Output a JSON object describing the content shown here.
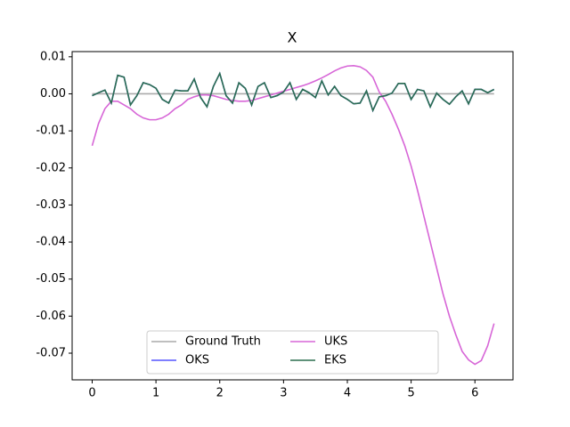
{
  "chart_data": {
    "type": "line",
    "title": "X",
    "x": [
      0,
      0.1,
      0.2,
      0.3,
      0.4,
      0.5,
      0.6,
      0.7,
      0.8,
      0.9,
      1.0,
      1.1,
      1.2,
      1.3,
      1.4,
      1.5,
      1.6,
      1.7,
      1.8,
      1.9,
      2.0,
      2.1,
      2.2,
      2.3,
      2.4,
      2.5,
      2.6,
      2.7,
      2.8,
      2.9,
      3.0,
      3.1,
      3.2,
      3.3,
      3.4,
      3.5,
      3.6,
      3.7,
      3.8,
      3.9,
      4.0,
      4.1,
      4.2,
      4.3,
      4.4,
      4.5,
      4.6,
      4.7,
      4.8,
      4.9,
      5.0,
      5.1,
      5.2,
      5.3,
      5.4,
      5.5,
      5.6,
      5.7,
      5.8,
      5.9,
      6.0,
      6.1,
      6.2,
      6.3
    ],
    "series": [
      {
        "name": "Ground Truth",
        "color": "#aaaaaa",
        "values": [
          0,
          0,
          0,
          0,
          0,
          0,
          0,
          0,
          0,
          0,
          0,
          0,
          0,
          0,
          0,
          0,
          0,
          0,
          0,
          0,
          0,
          0,
          0,
          0,
          0,
          0,
          0,
          0,
          0,
          0,
          0,
          0,
          0,
          0,
          0,
          0,
          0,
          0,
          0,
          0,
          0,
          0,
          0,
          0,
          0,
          0,
          0,
          0,
          0,
          0,
          0,
          0,
          0,
          0,
          0,
          0,
          0,
          0,
          0,
          0,
          0,
          0,
          0,
          0
        ]
      },
      {
        "name": "OKS",
        "color": "#5555ff",
        "values": [
          -0.0005,
          0.0003,
          0.001,
          -0.0025,
          0.005,
          0.0045,
          -0.003,
          -0.0005,
          0.003,
          0.0025,
          0.0015,
          -0.0015,
          -0.0025,
          0.001,
          0.0008,
          0.0008,
          0.004,
          -0.001,
          -0.0035,
          0.002,
          0.0055,
          -0.0005,
          -0.0025,
          0.003,
          0.0015,
          -0.003,
          0.002,
          0.003,
          -0.001,
          -0.0005,
          0.0005,
          0.003,
          -0.0015,
          0.0012,
          0.0003,
          -0.001,
          0.0035,
          -0.0003,
          0.002,
          -0.0005,
          -0.0015,
          -0.0027,
          -0.0025,
          0.0008,
          -0.0045,
          -0.0008,
          -0.0005,
          0.0002,
          0.0028,
          0.0028,
          -0.0015,
          0.0012,
          0.0008,
          -0.0035,
          0.0002,
          -0.0015,
          -0.0028,
          -0.0008,
          0.0008,
          -0.0027,
          0.0012,
          0.0012,
          0.0003,
          0.0012
        ]
      },
      {
        "name": "UKS",
        "color": "#d766d7",
        "values": [
          -0.014,
          -0.008,
          -0.004,
          -0.002,
          -0.002,
          -0.003,
          -0.004,
          -0.0055,
          -0.0065,
          -0.007,
          -0.007,
          -0.0065,
          -0.0055,
          -0.004,
          -0.003,
          -0.0015,
          -0.0008,
          -0.0003,
          -0.0003,
          -0.0005,
          -0.001,
          -0.0015,
          -0.0018,
          -0.002,
          -0.002,
          -0.0018,
          -0.0013,
          -0.0008,
          -0.0003,
          0.0002,
          0.0007,
          0.0012,
          0.0017,
          0.0022,
          0.0028,
          0.0035,
          0.0043,
          0.0052,
          0.0062,
          0.007,
          0.0075,
          0.0076,
          0.0073,
          0.0063,
          0.0045,
          0.0005,
          -0.002,
          -0.0055,
          -0.0095,
          -0.014,
          -0.0195,
          -0.026,
          -0.033,
          -0.04,
          -0.047,
          -0.054,
          -0.06,
          -0.065,
          -0.0695,
          -0.0718,
          -0.073,
          -0.072,
          -0.068,
          -0.062
        ]
      },
      {
        "name": "EKS",
        "color": "#2b6e4f",
        "values": [
          -0.0005,
          0.0003,
          0.001,
          -0.0025,
          0.005,
          0.0045,
          -0.003,
          -0.0005,
          0.003,
          0.0025,
          0.0015,
          -0.0015,
          -0.0025,
          0.001,
          0.0008,
          0.0008,
          0.004,
          -0.001,
          -0.0035,
          0.002,
          0.0055,
          -0.0005,
          -0.0025,
          0.003,
          0.0015,
          -0.003,
          0.002,
          0.003,
          -0.001,
          -0.0005,
          0.0005,
          0.003,
          -0.0015,
          0.0012,
          0.0003,
          -0.001,
          0.0035,
          -0.0003,
          0.002,
          -0.0005,
          -0.0015,
          -0.0027,
          -0.0025,
          0.0008,
          -0.0045,
          -0.0008,
          -0.0005,
          0.0002,
          0.0028,
          0.0028,
          -0.0015,
          0.0012,
          0.0008,
          -0.0035,
          0.0002,
          -0.0015,
          -0.0028,
          -0.0008,
          0.0008,
          -0.0027,
          0.0012,
          0.0012,
          0.0003,
          0.0012
        ]
      }
    ],
    "xlim": [
      -0.314,
      6.597
    ],
    "xticks": [
      0,
      1,
      2,
      3,
      4,
      5,
      6
    ],
    "ylim": [
      -0.0772,
      0.0114
    ],
    "yticks": [
      -0.07,
      -0.06,
      -0.05,
      -0.04,
      -0.03,
      -0.02,
      -0.01,
      {
        "value": 0,
        "label": "0.00"
      },
      0.01
    ],
    "legend": "lower center",
    "legend_columns": 3
  }
}
